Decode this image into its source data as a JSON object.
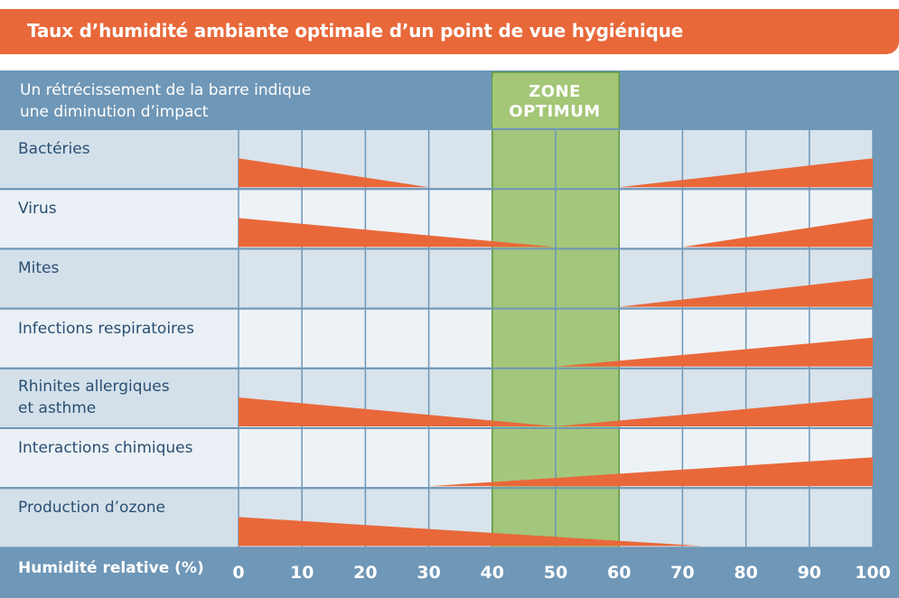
{
  "title": "Taux d’humidité ambiante optimale d’un point de vue hygiénique",
  "subtitle": "Un rétrécissement de la barre indique\nune diminution d’impact",
  "zone_label": "ZONE\nOPTIMUM",
  "colors": {
    "banner": "#e8683a",
    "frame": "#6f97b7",
    "bar": "#e8683a",
    "zone": "#a4c677",
    "label_text": "#2a4f72"
  },
  "chart_data": {
    "type": "area",
    "xlabel": "Humidité relative (%)",
    "xticks": [
      0,
      10,
      20,
      30,
      40,
      50,
      60,
      70,
      80,
      90,
      100
    ],
    "xlim": [
      0,
      100
    ],
    "optimum_zone": [
      40,
      60
    ],
    "series": [
      {
        "name": "Bactéries",
        "segments": [
          {
            "x": [
              0,
              30
            ],
            "width": [
              1,
              0
            ]
          },
          {
            "x": [
              60,
              100
            ],
            "width": [
              0,
              1
            ]
          }
        ]
      },
      {
        "name": "Virus",
        "segments": [
          {
            "x": [
              0,
              50
            ],
            "width": [
              1,
              0
            ]
          },
          {
            "x": [
              70,
              100
            ],
            "width": [
              0,
              1
            ]
          }
        ]
      },
      {
        "name": "Mites",
        "segments": [
          {
            "x": [
              60,
              100
            ],
            "width": [
              0,
              1
            ]
          }
        ]
      },
      {
        "name": "Infections respiratoires",
        "segments": [
          {
            "x": [
              50,
              100
            ],
            "width": [
              0,
              1
            ]
          }
        ]
      },
      {
        "name": "Rhinites allergiques\net asthme",
        "segments": [
          {
            "x": [
              0,
              50
            ],
            "width": [
              1,
              0
            ]
          },
          {
            "x": [
              50,
              100
            ],
            "width": [
              0,
              1
            ]
          }
        ]
      },
      {
        "name": "Interactions chimiques",
        "segments": [
          {
            "x": [
              30,
              100
            ],
            "width": [
              0,
              1
            ]
          }
        ]
      },
      {
        "name": "Production d’ozone",
        "segments": [
          {
            "x": [
              0,
              73
            ],
            "width": [
              1,
              0
            ]
          }
        ]
      }
    ]
  }
}
